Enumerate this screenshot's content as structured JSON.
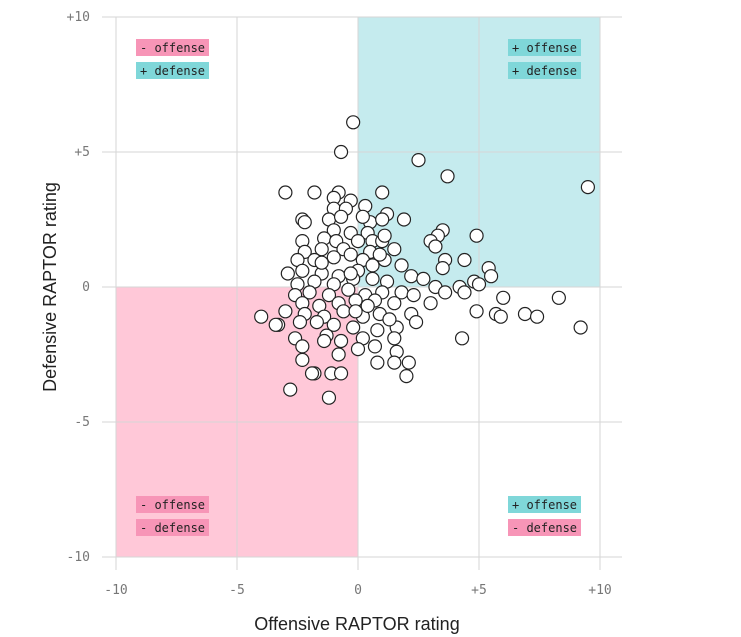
{
  "chart_data": {
    "type": "scatter",
    "title": "",
    "xlabel": "Offensive RAPTOR rating",
    "ylabel": "Defensive RAPTOR rating",
    "xlim": [
      -10,
      10
    ],
    "ylim": [
      -10,
      10
    ],
    "x_ticks": [
      {
        "value": -10,
        "label": "-10"
      },
      {
        "value": -5,
        "label": "-5"
      },
      {
        "value": 0,
        "label": "0"
      },
      {
        "value": 5,
        "label": "+5"
      },
      {
        "value": 10,
        "label": "+10"
      }
    ],
    "y_ticks": [
      {
        "value": -10,
        "label": "-10"
      },
      {
        "value": -5,
        "label": "-5"
      },
      {
        "value": 0,
        "label": "0"
      },
      {
        "value": 5,
        "label": "+5"
      },
      {
        "value": 10,
        "label": "+10"
      }
    ],
    "grid": true,
    "quadrants": [
      {
        "id": "pos-off-pos-def",
        "x_range": [
          0,
          10
        ],
        "y_range": [
          0,
          10
        ],
        "fill": "#c5ebee"
      },
      {
        "id": "neg-off-neg-def",
        "x_range": [
          -10,
          0
        ],
        "y_range": [
          -10,
          0
        ],
        "fill": "#ffc8d8"
      }
    ],
    "quadrant_labels": [
      {
        "position": "top-left",
        "offense": "- offense",
        "defense": "+ defense",
        "offense_color": "#f795b7",
        "defense_color": "#7fd7d9"
      },
      {
        "position": "top-right",
        "offense": "+ offense",
        "defense": "+ defense",
        "offense_color": "#7fd7d9",
        "defense_color": "#7fd7d9"
      },
      {
        "position": "bottom-left",
        "offense": "- offense",
        "defense": "- defense",
        "offense_color": "#f795b7",
        "defense_color": "#f795b7"
      },
      {
        "position": "bottom-right",
        "offense": "+ offense",
        "defense": "- defense",
        "offense_color": "#7fd7d9",
        "defense_color": "#f795b7"
      }
    ],
    "marker": {
      "fill": "#ffffff",
      "stroke": "#222222"
    },
    "points": [
      [
        9.5,
        3.7
      ],
      [
        -0.2,
        6.1
      ],
      [
        -0.7,
        5.0
      ],
      [
        2.5,
        4.7
      ],
      [
        3.7,
        4.1
      ],
      [
        -3.0,
        3.5
      ],
      [
        -1.8,
        3.5
      ],
      [
        1.0,
        3.5
      ],
      [
        -0.8,
        3.5
      ],
      [
        -0.3,
        3.2
      ],
      [
        -1.0,
        3.3
      ],
      [
        0.3,
        3.0
      ],
      [
        -1.0,
        2.9
      ],
      [
        -0.5,
        2.9
      ],
      [
        -2.3,
        2.5
      ],
      [
        -2.2,
        2.4
      ],
      [
        -1.2,
        2.5
      ],
      [
        -0.7,
        2.6
      ],
      [
        0.5,
        2.4
      ],
      [
        1.2,
        2.7
      ],
      [
        1.0,
        2.5
      ],
      [
        1.9,
        2.5
      ],
      [
        -1.0,
        2.1
      ],
      [
        -0.3,
        2.0
      ],
      [
        0.4,
        2.0
      ],
      [
        3.5,
        2.1
      ],
      [
        3.3,
        1.9
      ],
      [
        4.9,
        1.9
      ],
      [
        -2.3,
        1.7
      ],
      [
        -1.4,
        1.8
      ],
      [
        -0.9,
        1.7
      ],
      [
        0.0,
        1.7
      ],
      [
        0.6,
        1.7
      ],
      [
        1.0,
        1.7
      ],
      [
        3.0,
        1.7
      ],
      [
        3.2,
        1.5
      ],
      [
        -2.2,
        1.3
      ],
      [
        -1.5,
        1.4
      ],
      [
        -0.6,
        1.4
      ],
      [
        0.5,
        1.3
      ],
      [
        1.5,
        1.4
      ],
      [
        -2.5,
        1.0
      ],
      [
        -1.8,
        1.0
      ],
      [
        -1.0,
        1.1
      ],
      [
        -0.3,
        1.2
      ],
      [
        0.2,
        1.0
      ],
      [
        1.1,
        1.0
      ],
      [
        3.6,
        1.0
      ],
      [
        4.4,
        1.0
      ],
      [
        -2.9,
        0.5
      ],
      [
        -2.3,
        0.6
      ],
      [
        -1.5,
        0.5
      ],
      [
        -0.8,
        0.4
      ],
      [
        0.0,
        0.6
      ],
      [
        0.6,
        0.8
      ],
      [
        1.8,
        0.8
      ],
      [
        3.5,
        0.7
      ],
      [
        5.4,
        0.7
      ],
      [
        -2.5,
        0.1
      ],
      [
        -1.8,
        0.2
      ],
      [
        -1.0,
        0.1
      ],
      [
        -0.2,
        0.3
      ],
      [
        0.6,
        0.3
      ],
      [
        1.2,
        0.2
      ],
      [
        2.2,
        0.4
      ],
      [
        2.7,
        0.3
      ],
      [
        3.2,
        0.0
      ],
      [
        4.2,
        0.0
      ],
      [
        4.8,
        0.2
      ],
      [
        5.0,
        0.1
      ],
      [
        5.5,
        0.4
      ],
      [
        -2.6,
        -0.3
      ],
      [
        -2.0,
        -0.2
      ],
      [
        -1.2,
        -0.3
      ],
      [
        -0.4,
        -0.1
      ],
      [
        0.3,
        -0.3
      ],
      [
        1.0,
        -0.2
      ],
      [
        1.8,
        -0.2
      ],
      [
        2.3,
        -0.3
      ],
      [
        3.6,
        -0.2
      ],
      [
        4.4,
        -0.2
      ],
      [
        6.0,
        -0.4
      ],
      [
        -2.3,
        -0.6
      ],
      [
        -1.6,
        -0.7
      ],
      [
        -0.8,
        -0.6
      ],
      [
        -0.1,
        -0.5
      ],
      [
        0.7,
        -0.5
      ],
      [
        1.5,
        -0.6
      ],
      [
        3.0,
        -0.6
      ],
      [
        8.3,
        -0.4
      ],
      [
        -3.0,
        -0.9
      ],
      [
        -2.2,
        -1.0
      ],
      [
        -1.4,
        -1.1
      ],
      [
        -0.6,
        -0.9
      ],
      [
        0.2,
        -1.1
      ],
      [
        0.9,
        -1.0
      ],
      [
        2.2,
        -1.0
      ],
      [
        4.9,
        -0.9
      ],
      [
        5.7,
        -1.0
      ],
      [
        6.9,
        -1.0
      ],
      [
        7.4,
        -1.1
      ],
      [
        -4.0,
        -1.1
      ],
      [
        -3.3,
        -1.4
      ],
      [
        -2.4,
        -1.3
      ],
      [
        -1.7,
        -1.3
      ],
      [
        -1.0,
        -1.4
      ],
      [
        -0.2,
        -1.5
      ],
      [
        0.8,
        -1.6
      ],
      [
        1.6,
        -1.5
      ],
      [
        2.4,
        -1.3
      ],
      [
        5.9,
        -1.1
      ],
      [
        9.2,
        -1.5
      ],
      [
        -3.4,
        -1.4
      ],
      [
        -2.6,
        -1.9
      ],
      [
        -1.3,
        -1.8
      ],
      [
        -0.7,
        -2.0
      ],
      [
        0.2,
        -1.9
      ],
      [
        1.5,
        -1.9
      ],
      [
        4.3,
        -1.9
      ],
      [
        -2.3,
        -2.2
      ],
      [
        -1.4,
        -2.0
      ],
      [
        -0.8,
        -2.5
      ],
      [
        0.0,
        -2.3
      ],
      [
        0.7,
        -2.2
      ],
      [
        1.6,
        -2.4
      ],
      [
        -2.3,
        -2.7
      ],
      [
        -1.8,
        -3.2
      ],
      [
        -1.1,
        -3.2
      ],
      [
        -0.7,
        -3.2
      ],
      [
        0.8,
        -2.8
      ],
      [
        1.5,
        -2.8
      ],
      [
        2.1,
        -2.8
      ],
      [
        2.0,
        -3.3
      ],
      [
        -2.8,
        -3.8
      ],
      [
        -1.2,
        -4.1
      ],
      [
        -1.9,
        -3.2
      ],
      [
        -0.1,
        -0.9
      ],
      [
        0.4,
        -0.7
      ],
      [
        -1.5,
        0.9
      ],
      [
        0.9,
        1.2
      ],
      [
        1.3,
        -1.2
      ],
      [
        -0.3,
        0.5
      ],
      [
        0.2,
        2.6
      ],
      [
        1.1,
        1.9
      ]
    ]
  }
}
